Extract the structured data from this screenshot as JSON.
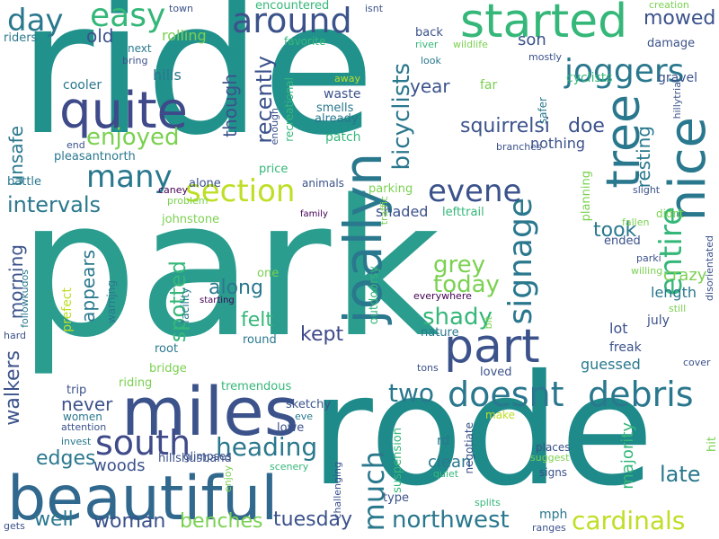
{
  "palette": {
    "purple": "#440154",
    "indigo": "#414487",
    "blue": "#2a788e",
    "teal": "#22a884",
    "green": "#35b779",
    "lime": "#7ad151",
    "yellow": "#bddf26"
  },
  "words": [
    {
      "text": "park",
      "color": "#2a9d8f"
    },
    {
      "text": "ride",
      "color": "#21918c"
    },
    {
      "text": "rode",
      "color": "#1f8a8a"
    },
    {
      "text": "beautiful",
      "color": "#31688e"
    },
    {
      "text": "miles",
      "color": "#3b528b"
    },
    {
      "text": "started",
      "color": "#35b779"
    },
    {
      "text": "quite",
      "color": "#3e4a89"
    },
    {
      "text": "joallyn",
      "color": "#2a788e"
    },
    {
      "text": "part",
      "color": "#3b528b"
    },
    {
      "text": "tree",
      "color": "#2a788e"
    },
    {
      "text": "nice",
      "color": "#2a788e"
    },
    {
      "text": "south",
      "color": "#3e4a89"
    },
    {
      "text": "doesnt",
      "color": "#2a788e"
    },
    {
      "text": "debris",
      "color": "#2a788e"
    },
    {
      "text": "around",
      "color": "#3b528b"
    },
    {
      "text": "signage",
      "color": "#2a788e"
    },
    {
      "text": "section",
      "color": "#bddf26"
    },
    {
      "text": "many",
      "color": "#2a788e"
    },
    {
      "text": "entire",
      "color": "#35b779"
    },
    {
      "text": "joggers",
      "color": "#2a788e"
    },
    {
      "text": "easy",
      "color": "#35b779"
    },
    {
      "text": "day",
      "color": "#2a788e"
    },
    {
      "text": "much",
      "color": "#2a788e"
    },
    {
      "text": "evene",
      "color": "#3b528b"
    },
    {
      "text": "cardinals",
      "color": "#bddf26"
    },
    {
      "text": "northwest",
      "color": "#2a788e"
    },
    {
      "text": "enjoyed",
      "color": "#7ad151"
    },
    {
      "text": "heading",
      "color": "#2a788e"
    },
    {
      "text": "two",
      "color": "#2a788e"
    },
    {
      "text": "bicyclists",
      "color": "#2a788e"
    },
    {
      "text": "shady",
      "color": "#35b779"
    },
    {
      "text": "grey",
      "color": "#7ad151"
    },
    {
      "text": "today",
      "color": "#7ad151"
    },
    {
      "text": "recently",
      "color": "#3b528b"
    },
    {
      "text": "squirrelsi",
      "color": "#3b528b"
    },
    {
      "text": "spotted",
      "color": "#35b779"
    },
    {
      "text": "intervals",
      "color": "#2a788e"
    },
    {
      "text": "well",
      "color": "#2a788e"
    },
    {
      "text": "woman",
      "color": "#3b528b"
    },
    {
      "text": "benches",
      "color": "#7ad151"
    },
    {
      "text": "tuesday",
      "color": "#3b528b"
    },
    {
      "text": "kept",
      "color": "#3e4a89"
    },
    {
      "text": "mowed",
      "color": "#3b528b"
    },
    {
      "text": "edges",
      "color": "#2a788e"
    },
    {
      "text": "along",
      "color": "#2a788e"
    },
    {
      "text": "walkers",
      "color": "#3b528b"
    },
    {
      "text": "unsafe",
      "color": "#2a788e"
    },
    {
      "text": "late",
      "color": "#2a788e"
    },
    {
      "text": "though",
      "color": "#3b528b"
    },
    {
      "text": "took",
      "color": "#2a788e"
    },
    {
      "text": "appears",
      "color": "#2a788e"
    },
    {
      "text": "morning",
      "color": "#3b528b"
    },
    {
      "text": "felt",
      "color": "#35b779"
    },
    {
      "text": "resting",
      "color": "#2a788e"
    },
    {
      "text": "doe",
      "color": "#3b528b"
    },
    {
      "text": "son",
      "color": "#3b528b"
    },
    {
      "text": "year",
      "color": "#3b528b"
    },
    {
      "text": "old",
      "color": "#3b528b"
    },
    {
      "text": "never",
      "color": "#3b528b"
    },
    {
      "text": "woods",
      "color": "#3b528b"
    },
    {
      "text": "guessed",
      "color": "#2a788e"
    },
    {
      "text": "crazy",
      "color": "#7ad151"
    },
    {
      "text": "majority",
      "color": "#35b779"
    },
    {
      "text": "clean",
      "color": "#2a788e"
    },
    {
      "text": "lot",
      "color": "#3b528b"
    },
    {
      "text": "length",
      "color": "#2a788e"
    },
    {
      "text": "shaded",
      "color": "#3b528b"
    },
    {
      "text": "nothing",
      "color": "#3b528b"
    },
    {
      "text": "hills",
      "color": "#2a788e"
    },
    {
      "text": "rolling",
      "color": "#7ad151"
    },
    {
      "text": "cooler",
      "color": "#2a788e"
    },
    {
      "text": "gravel",
      "color": "#3b528b"
    },
    {
      "text": "cyclists",
      "color": "#35b779"
    },
    {
      "text": "far",
      "color": "#7ad151"
    },
    {
      "text": "back",
      "color": "#3b528b"
    },
    {
      "text": "waste",
      "color": "#3b528b"
    },
    {
      "text": "smells",
      "color": "#2a788e"
    },
    {
      "text": "already",
      "color": "#2a788e"
    },
    {
      "text": "patch",
      "color": "#35b779"
    },
    {
      "text": "pleasantnorth",
      "color": "#2a788e"
    },
    {
      "text": "price",
      "color": "#35b779"
    },
    {
      "text": "animals",
      "color": "#3b528b"
    },
    {
      "text": "parking",
      "color": "#7ad151"
    },
    {
      "text": "lefttrail",
      "color": "#35b779"
    },
    {
      "text": "alone",
      "color": "#3b528b"
    },
    {
      "text": "johnstone",
      "color": "#7ad151"
    },
    {
      "text": "battle",
      "color": "#2a788e"
    },
    {
      "text": "favorite",
      "color": "#35b779"
    },
    {
      "text": "encountered",
      "color": "#35b779"
    },
    {
      "text": "riders",
      "color": "#2a788e"
    },
    {
      "text": "next",
      "color": "#2a788e"
    },
    {
      "text": "bring",
      "color": "#3b528b"
    },
    {
      "text": "damage",
      "color": "#3b528b"
    },
    {
      "text": "mostly",
      "color": "#3b528b"
    },
    {
      "text": "creation",
      "color": "#7ad151"
    },
    {
      "text": "look",
      "color": "#2a788e"
    },
    {
      "text": "river",
      "color": "#35b779"
    },
    {
      "text": "wildlife",
      "color": "#7ad151"
    },
    {
      "text": "town",
      "color": "#3b528b"
    },
    {
      "text": "isnt",
      "color": "#3b528b"
    },
    {
      "text": "away",
      "color": "#bddf26"
    },
    {
      "text": "recreational",
      "color": "#35b779"
    },
    {
      "text": "enough",
      "color": "#3b528b"
    },
    {
      "text": "end",
      "color": "#3b528b"
    },
    {
      "text": "safer",
      "color": "#2a788e"
    },
    {
      "text": "hillytrial",
      "color": "#3b528b"
    },
    {
      "text": "branches",
      "color": "#3b528b"
    },
    {
      "text": "traffic",
      "color": "#7ad151"
    },
    {
      "text": "planning",
      "color": "#7ad151"
    },
    {
      "text": "slight",
      "color": "#3b528b"
    },
    {
      "text": "didnt",
      "color": "#7ad151"
    },
    {
      "text": "fallen",
      "color": "#7ad151"
    },
    {
      "text": "ended",
      "color": "#3b528b"
    },
    {
      "text": "willing",
      "color": "#7ad151"
    },
    {
      "text": "parki",
      "color": "#3b528b"
    },
    {
      "text": "disorientated",
      "color": "#3b528b"
    },
    {
      "text": "still",
      "color": "#7ad151"
    },
    {
      "text": "july",
      "color": "#3b528b"
    },
    {
      "text": "freak",
      "color": "#3b528b"
    },
    {
      "text": "cover",
      "color": "#3b528b"
    },
    {
      "text": "loved",
      "color": "#3b528b"
    },
    {
      "text": "tons",
      "color": "#3b528b"
    },
    {
      "text": "nature",
      "color": "#2a788e"
    },
    {
      "text": "bit",
      "color": "#7ad151"
    },
    {
      "text": "everywhere",
      "color": "#440154"
    },
    {
      "text": "outdoorsy",
      "color": "#35b779"
    },
    {
      "text": "one",
      "color": "#7ad151"
    },
    {
      "text": "facility",
      "color": "#2a788e"
    },
    {
      "text": "warnjng",
      "color": "#2a788e"
    },
    {
      "text": "prefect",
      "color": "#bddf26"
    },
    {
      "text": "followkudos",
      "color": "#2a788e"
    },
    {
      "text": "round",
      "color": "#2a788e"
    },
    {
      "text": "root",
      "color": "#2a788e"
    },
    {
      "text": "bridge",
      "color": "#7ad151"
    },
    {
      "text": "riding",
      "color": "#7ad151"
    },
    {
      "text": "tremendous",
      "color": "#35b779"
    },
    {
      "text": "trip",
      "color": "#3b528b"
    },
    {
      "text": "women",
      "color": "#2a788e"
    },
    {
      "text": "attention",
      "color": "#3b528b"
    },
    {
      "text": "invest",
      "color": "#2a788e"
    },
    {
      "text": "sketchy",
      "color": "#3b528b"
    },
    {
      "text": "eve",
      "color": "#2a788e"
    },
    {
      "text": "lowe",
      "color": "#3b528b"
    },
    {
      "text": "glimpses",
      "color": "#3b528b"
    },
    {
      "text": "hillshusband",
      "color": "#3b528b"
    },
    {
      "text": "scenery",
      "color": "#35b779"
    },
    {
      "text": "enjoy",
      "color": "#7ad151"
    },
    {
      "text": "challenging",
      "color": "#3b528b"
    },
    {
      "text": "suspension",
      "color": "#35b779"
    },
    {
      "text": "negotiate",
      "color": "#3b528b"
    },
    {
      "text": "rd",
      "color": "#2a788e"
    },
    {
      "text": "make",
      "color": "#bddf26"
    },
    {
      "text": "quiet",
      "color": "#35b779"
    },
    {
      "text": "type",
      "color": "#3b528b"
    },
    {
      "text": "splits",
      "color": "#35b779"
    },
    {
      "text": "places",
      "color": "#3b528b"
    },
    {
      "text": "suggest",
      "color": "#7ad151"
    },
    {
      "text": "signs",
      "color": "#3b528b"
    },
    {
      "text": "mph",
      "color": "#2a788e"
    },
    {
      "text": "ranges",
      "color": "#3b528b"
    },
    {
      "text": "hit",
      "color": "#7ad151"
    },
    {
      "text": "gets",
      "color": "#3b528b"
    },
    {
      "text": "hard",
      "color": "#3b528b"
    },
    {
      "text": "caney",
      "color": "#440154"
    },
    {
      "text": "problem",
      "color": "#7ad151"
    },
    {
      "text": "family",
      "color": "#440154"
    },
    {
      "text": "starting",
      "color": "#440154"
    }
  ]
}
